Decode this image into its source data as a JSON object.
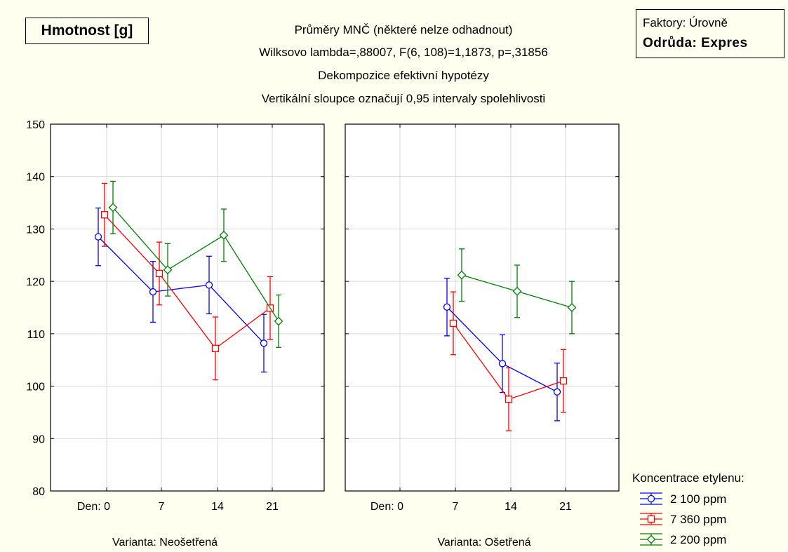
{
  "ylabel_box": "Hmotnost [g]",
  "titles": [
    "Průměry MNČ (některé nelze odhadnout)",
    "Wilksovo lambda=,88007, F(6, 108)=1,1873, p=,31856",
    "Dekompozice efektivní hypotézy",
    "Vertikální sloupce označují 0,95 intervaly spolehlivosti"
  ],
  "factor": {
    "label": "Faktory: Úrovně",
    "value": "Odrůda: Expres"
  },
  "legend": {
    "title": "Koncentrace etylenu:",
    "items": [
      {
        "label": "2 100 ppm",
        "color": "#0000FF",
        "marker": "circle"
      },
      {
        "label": "7 360 ppm",
        "color": "#FF0000",
        "marker": "square"
      },
      {
        "label": "2 200 ppm",
        "color": "#008000",
        "marker": "diamond"
      }
    ]
  },
  "chart_data": {
    "type": "line",
    "ylim": [
      80,
      150
    ],
    "yticks": [
      80,
      90,
      100,
      110,
      120,
      130,
      140,
      150
    ],
    "x_tick_labels": [
      "Den:  0",
      "7",
      "14",
      "21"
    ],
    "grid": true,
    "legend_position": "bottom-right",
    "panels": [
      {
        "label": "Varianta: Neošetřená",
        "series": [
          {
            "name": "2 100 ppm",
            "color": "#0000FF",
            "x": [
              0,
              7,
              14,
              21
            ],
            "y": [
              128.5,
              118.0,
              119.3,
              108.2
            ],
            "ci": [
              5.5,
              5.8,
              5.5,
              5.5
            ]
          },
          {
            "name": "7 360 ppm",
            "color": "#FF0000",
            "x": [
              0,
              7,
              14,
              21
            ],
            "y": [
              132.7,
              121.5,
              107.2,
              114.9
            ],
            "ci": [
              6.0,
              6.0,
              6.0,
              6.0
            ]
          },
          {
            "name": "2 200 ppm",
            "color": "#008000",
            "x": [
              0,
              7,
              14,
              21
            ],
            "y": [
              134.1,
              122.2,
              128.8,
              112.4
            ],
            "ci": [
              5.0,
              5.0,
              5.0,
              5.0
            ]
          }
        ]
      },
      {
        "label": "Varianta: Ošetřená",
        "series": [
          {
            "name": "2 100 ppm",
            "color": "#0000FF",
            "x": [
              7,
              14,
              21
            ],
            "y": [
              115.1,
              104.3,
              98.9
            ],
            "ci": [
              5.5,
              5.5,
              5.5
            ]
          },
          {
            "name": "7 360 ppm",
            "color": "#FF0000",
            "x": [
              7,
              14,
              21
            ],
            "y": [
              112.0,
              97.5,
              101.0
            ],
            "ci": [
              6.0,
              6.0,
              6.0
            ]
          },
          {
            "name": "2 200 ppm",
            "color": "#008000",
            "x": [
              7,
              14,
              21
            ],
            "y": [
              121.2,
              118.1,
              115.0
            ],
            "ci": [
              5.0,
              5.0,
              5.0
            ]
          }
        ]
      }
    ]
  }
}
